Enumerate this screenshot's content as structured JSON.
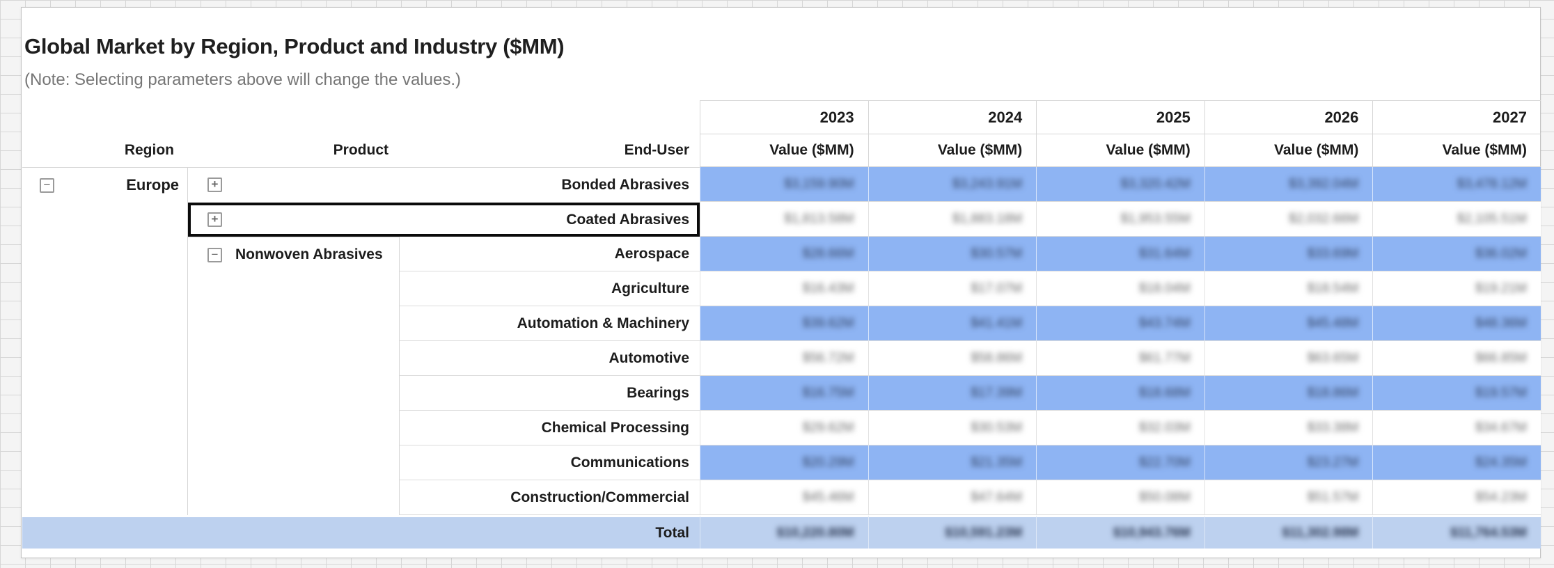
{
  "header": {
    "title": "Global Market by Region, Product and Industry ($MM)",
    "note": "(Note: Selecting parameters above will change the values.)"
  },
  "table": {
    "column_headers": {
      "region": "Region",
      "product": "Product",
      "end_user": "End-User"
    },
    "years": [
      "2023",
      "2024",
      "2025",
      "2026",
      "2027"
    ],
    "measure_label": "Value ($MM)",
    "values_note": "numeric cell values are blurred/illegible in the source screenshot; figures below are approximate",
    "region": {
      "label": "Europe",
      "toggle": "−",
      "state": "expanded"
    },
    "products": [
      {
        "label": "Bonded Abrasives",
        "toggle": "+",
        "state": "collapsed",
        "highlighted": true,
        "values": [
          "$3,159.90M",
          "$3,243.91M",
          "$3,320.42M",
          "$3,392.04M",
          "$3,478.12M"
        ]
      },
      {
        "label": "Coated Abrasives",
        "toggle": "+",
        "state": "collapsed",
        "selected": true,
        "values": [
          "$1,813.58M",
          "$1,883.18M",
          "$1,953.55M",
          "$2,032.66M",
          "$2,105.51M"
        ]
      },
      {
        "label": "Nonwoven Abrasives",
        "toggle": "−",
        "state": "expanded",
        "end_users": [
          {
            "label": "Aerospace",
            "highlighted": true,
            "values": [
              "$28.66M",
              "$30.57M",
              "$31.64M",
              "$33.69M",
              "$36.02M"
            ]
          },
          {
            "label": "Agriculture",
            "highlighted": false,
            "values": [
              "$16.43M",
              "$17.07M",
              "$18.04M",
              "$18.54M",
              "$19.21M"
            ]
          },
          {
            "label": "Automation & Machinery",
            "highlighted": true,
            "values": [
              "$39.62M",
              "$41.41M",
              "$43.74M",
              "$45.48M",
              "$48.36M"
            ]
          },
          {
            "label": "Automotive",
            "highlighted": false,
            "values": [
              "$56.72M",
              "$58.86M",
              "$61.77M",
              "$63.65M",
              "$66.85M"
            ]
          },
          {
            "label": "Bearings",
            "highlighted": true,
            "values": [
              "$16.75M",
              "$17.39M",
              "$18.68M",
              "$18.86M",
              "$19.57M"
            ]
          },
          {
            "label": "Chemical Processing",
            "highlighted": false,
            "values": [
              "$29.62M",
              "$30.53M",
              "$32.03M",
              "$33.38M",
              "$34.67M"
            ]
          },
          {
            "label": "Communications",
            "highlighted": true,
            "values": [
              "$20.29M",
              "$21.35M",
              "$22.70M",
              "$23.27M",
              "$24.35M"
            ]
          },
          {
            "label": "Construction/Commercial",
            "highlighted": false,
            "values": [
              "$45.46M",
              "$47.64M",
              "$50.08M",
              "$51.57M",
              "$54.23M"
            ]
          }
        ]
      }
    ],
    "total": {
      "label": "Total",
      "values": [
        "$10,220.80M",
        "$10,591.23M",
        "$10,943.76M",
        "$11,302.98M",
        "$11,764.53M"
      ]
    }
  },
  "colors": {
    "row_highlight": "#8eb4f3",
    "total_row": "#bdd1ef",
    "selection_border": "#0b0b0b",
    "grid_line": "#d6d6d6",
    "value_text_highlight": "#2e3e5e",
    "value_text_plain": "#6b6b6b",
    "title_text": "#1f1f1f",
    "note_text": "#767676"
  }
}
